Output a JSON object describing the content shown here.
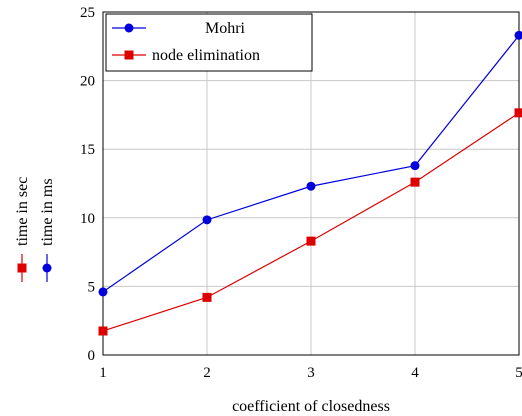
{
  "chart_data": {
    "type": "line",
    "title": "",
    "xlabel": "coefficient of closedness",
    "ylabel_entries": [
      {
        "label": "time in sec",
        "color": "#dd0000",
        "marker": "square"
      },
      {
        "label": "time in ms",
        "color": "#0000dd",
        "marker": "circle"
      }
    ],
    "xlim": [
      1,
      5
    ],
    "ylim": [
      0,
      25
    ],
    "x_ticks": [
      1,
      2,
      3,
      4,
      5
    ],
    "y_ticks": [
      0,
      5,
      10,
      15,
      20,
      25
    ],
    "grid": true,
    "legend_position": "top-left",
    "x": [
      1,
      2,
      3,
      4,
      5
    ],
    "series": [
      {
        "name": "Mohri",
        "color": "#0000dd",
        "marker": "circle",
        "values": [
          4.6,
          9.85,
          12.3,
          13.8,
          23.3
        ]
      },
      {
        "name": "node elimination",
        "color": "#dd0000",
        "marker": "square",
        "values": [
          1.75,
          4.2,
          8.3,
          12.6,
          17.65
        ]
      }
    ]
  }
}
